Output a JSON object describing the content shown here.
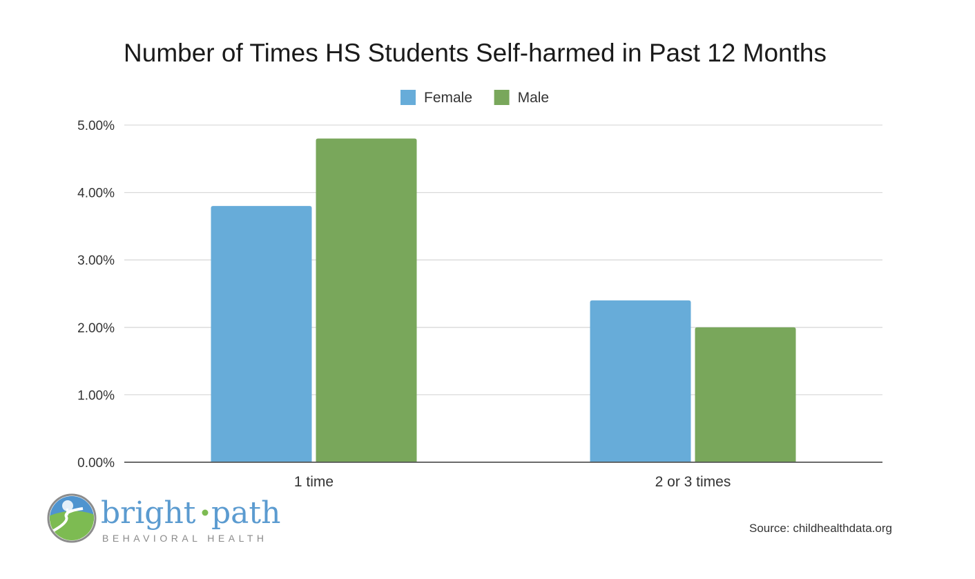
{
  "chart_data": {
    "type": "bar",
    "title": "Number of Times HS Students Self-harmed in Past 12 Months",
    "categories": [
      "1 time",
      "2 or 3 times"
    ],
    "series": [
      {
        "name": "Female",
        "color": "#67acd9",
        "values": [
          3.8,
          2.4
        ]
      },
      {
        "name": "Male",
        "color": "#79a75b",
        "values": [
          4.8,
          2.0
        ]
      }
    ],
    "ylim": [
      0,
      5
    ],
    "yticks": [
      "0.00%",
      "1.00%",
      "2.00%",
      "3.00%",
      "4.00%",
      "5.00%"
    ],
    "grid": true,
    "legend_position": "top-center"
  },
  "logo": {
    "word_left": "bright",
    "word_right": "path",
    "tagline": "BEHAVIORAL HEALTH",
    "dot_color": "#7dbb52",
    "text_color": "#5b9bd0"
  },
  "source": "Source: childhealthdata.org"
}
